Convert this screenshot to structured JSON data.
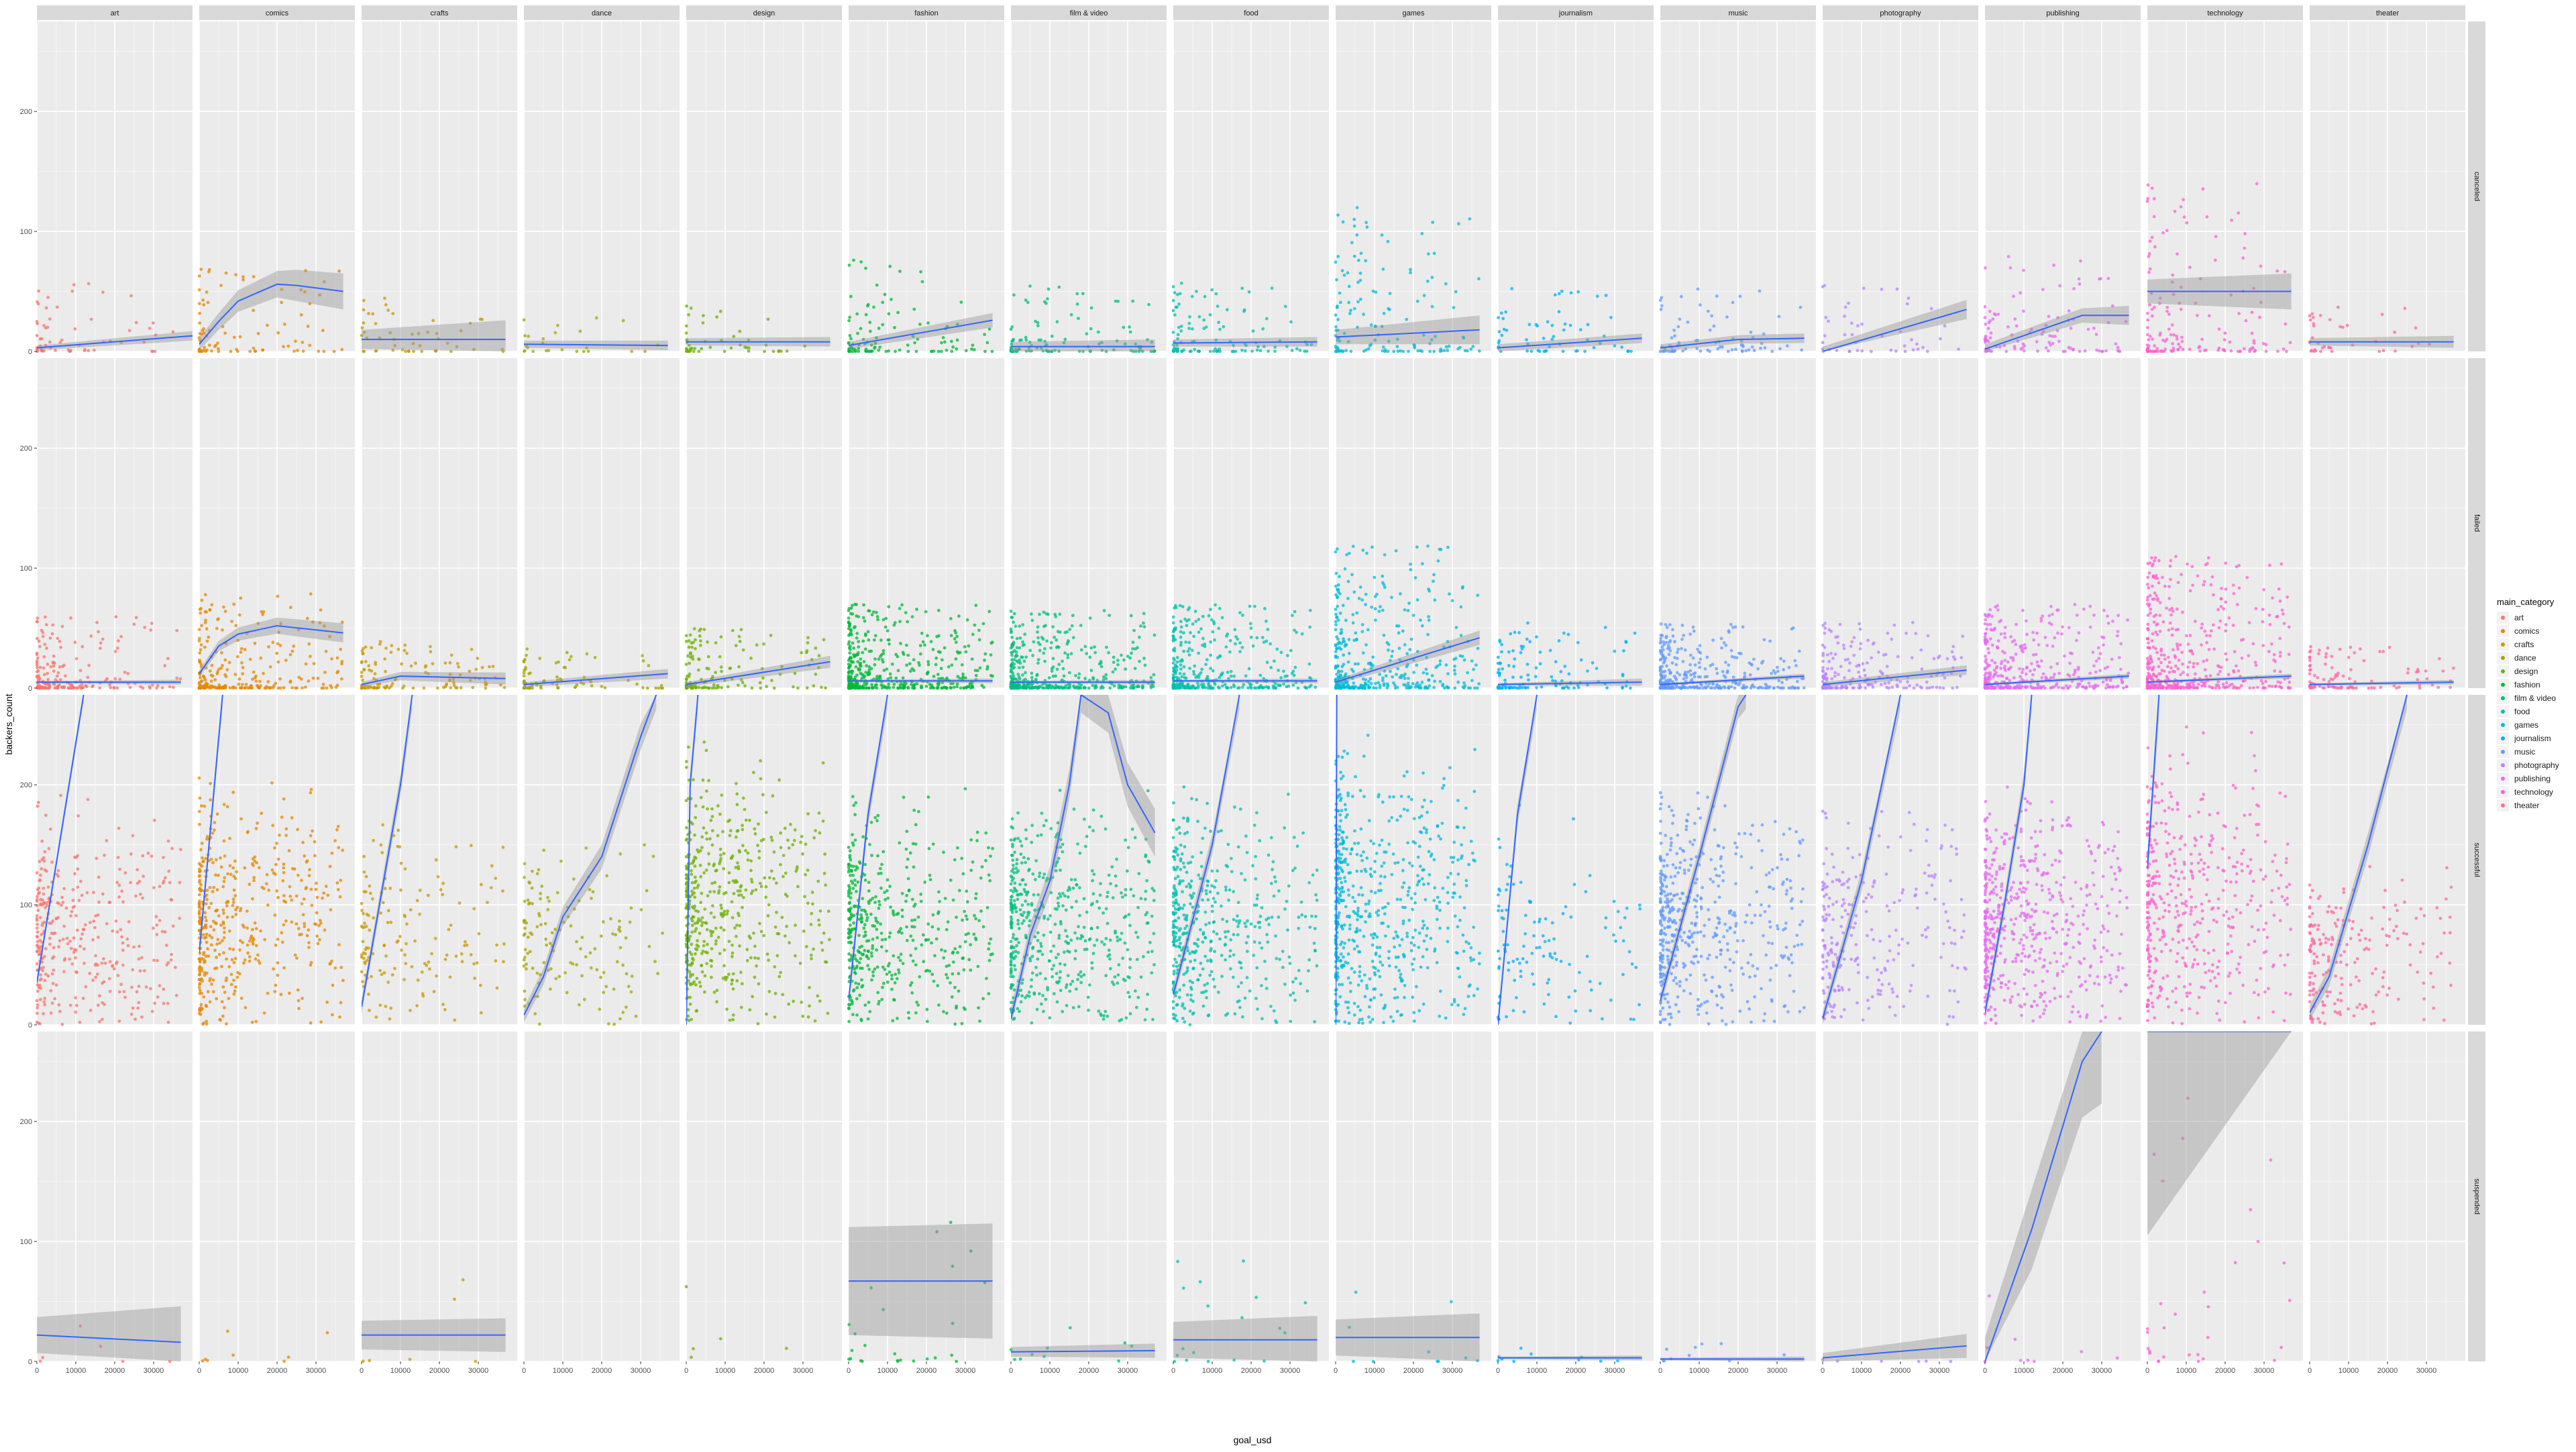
{
  "chart_data": {
    "type": "scatter",
    "subtype": "faceted-scatter-with-smooth",
    "xlabel": "goal_usd",
    "ylabel": "backers_count",
    "xlim": [
      0,
      40000
    ],
    "ylim": [
      0,
      275
    ],
    "x_ticks": [
      0,
      10000,
      20000,
      30000
    ],
    "y_ticks": [
      0,
      100,
      200
    ],
    "legend": {
      "title": "main_category",
      "position": "right",
      "items": [
        {
          "label": "art",
          "color": "#F8766D"
        },
        {
          "label": "comics",
          "color": "#E58700"
        },
        {
          "label": "crafts",
          "color": "#C99800"
        },
        {
          "label": "dance",
          "color": "#A3A500"
        },
        {
          "label": "design",
          "color": "#6BB100"
        },
        {
          "label": "fashion",
          "color": "#00BA38"
        },
        {
          "label": "film & video",
          "color": "#00BF7D"
        },
        {
          "label": "food",
          "color": "#00C0AF"
        },
        {
          "label": "games",
          "color": "#00BCD8"
        },
        {
          "label": "journalism",
          "color": "#00B0F6"
        },
        {
          "label": "music",
          "color": "#619CFF"
        },
        {
          "label": "photography",
          "color": "#B983FF"
        },
        {
          "label": "publishing",
          "color": "#E76BF3"
        },
        {
          "label": "technology",
          "color": "#FD61D1"
        },
        {
          "label": "theater",
          "color": "#FF67A4"
        }
      ]
    },
    "columns": [
      "art",
      "comics",
      "crafts",
      "dance",
      "design",
      "fashion",
      "film & video",
      "food",
      "games",
      "journalism",
      "music",
      "photography",
      "publishing",
      "technology",
      "theater"
    ],
    "rows": [
      "canceled",
      "failed",
      "successful",
      "suspended"
    ],
    "series": [
      {
        "row": "canceled",
        "density": [
          60,
          90,
          50,
          25,
          50,
          110,
          110,
          110,
          140,
          60,
          80,
          45,
          110,
          160,
          40
        ],
        "spread": [
          60,
          70,
          45,
          30,
          45,
          80,
          55,
          60,
          120,
          55,
          55,
          55,
          80,
          140,
          40
        ],
        "smooth": [
          [
            [
              0,
              3
            ],
            [
              40000,
              13
            ]
          ],
          [
            [
              0,
              6
            ],
            [
              5000,
              25
            ],
            [
              10000,
              42
            ],
            [
              20000,
              56
            ],
            [
              25000,
              55
            ],
            [
              37000,
              50
            ]
          ],
          [
            [
              0,
              10
            ],
            [
              37000,
              10
            ]
          ],
          [
            [
              0,
              6
            ],
            [
              37000,
              5
            ]
          ],
          [
            [
              0,
              8
            ],
            [
              37000,
              8
            ]
          ],
          [
            [
              0,
              5
            ],
            [
              37000,
              26
            ]
          ],
          [
            [
              0,
              4
            ],
            [
              37000,
              4
            ]
          ],
          [
            [
              0,
              7
            ],
            [
              37000,
              8
            ]
          ],
          [
            [
              0,
              12
            ],
            [
              37000,
              18
            ]
          ],
          [
            [
              0,
              3
            ],
            [
              37000,
              11
            ]
          ],
          [
            [
              0,
              3
            ],
            [
              20000,
              10
            ],
            [
              37000,
              11
            ]
          ],
          [
            [
              0,
              0
            ],
            [
              37000,
              35
            ]
          ],
          [
            [
              0,
              2
            ],
            [
              25000,
              30
            ],
            [
              37000,
              30
            ]
          ],
          [
            [
              0,
              50
            ],
            [
              37000,
              50
            ]
          ],
          [
            [
              0,
              8
            ],
            [
              37000,
              8
            ]
          ]
        ],
        "band": [
          [
            2,
            4
          ],
          [
            5,
            15
          ],
          [
            8,
            16
          ],
          [
            3,
            4
          ],
          [
            3,
            4
          ],
          [
            3,
            6
          ],
          [
            4,
            6
          ],
          [
            3,
            4
          ],
          [
            6,
            12
          ],
          [
            3,
            4
          ],
          [
            3,
            4
          ],
          [
            4,
            8
          ],
          [
            4,
            8
          ],
          [
            10,
            15
          ],
          [
            3,
            5
          ]
        ]
      },
      {
        "row": "failed",
        "density": [
          200,
          250,
          120,
          80,
          140,
          450,
          400,
          350,
          400,
          120,
          350,
          200,
          400,
          450,
          100
        ],
        "spread": [
          60,
          80,
          40,
          35,
          50,
          70,
          65,
          70,
          120,
          55,
          55,
          55,
          70,
          110,
          35
        ],
        "smooth": [
          [
            [
              0,
              5
            ],
            [
              37000,
              5
            ]
          ],
          [
            [
              0,
              12
            ],
            [
              5000,
              35
            ],
            [
              10000,
              45
            ],
            [
              20000,
              52
            ],
            [
              37000,
              46
            ]
          ],
          [
            [
              0,
              3
            ],
            [
              10000,
              10
            ],
            [
              37000,
              8
            ]
          ],
          [
            [
              0,
              3
            ],
            [
              37000,
              12
            ]
          ],
          [
            [
              0,
              3
            ],
            [
              37000,
              22
            ]
          ],
          [
            [
              0,
              6
            ],
            [
              37000,
              6
            ]
          ],
          [
            [
              0,
              5
            ],
            [
              37000,
              5
            ]
          ],
          [
            [
              0,
              6
            ],
            [
              37000,
              6
            ]
          ],
          [
            [
              0,
              5
            ],
            [
              37000,
              42
            ]
          ],
          [
            [
              0,
              3
            ],
            [
              37000,
              5
            ]
          ],
          [
            [
              0,
              3
            ],
            [
              37000,
              10
            ]
          ],
          [
            [
              0,
              3
            ],
            [
              37000,
              15
            ]
          ],
          [
            [
              0,
              3
            ],
            [
              37000,
              10
            ]
          ],
          [
            [
              0,
              5
            ],
            [
              37000,
              10
            ]
          ],
          [
            [
              0,
              3
            ],
            [
              37000,
              5
            ]
          ]
        ],
        "band": [
          [
            1,
            2
          ],
          [
            3,
            8
          ],
          [
            2,
            5
          ],
          [
            2,
            4
          ],
          [
            2,
            5
          ],
          [
            1,
            2
          ],
          [
            1,
            2
          ],
          [
            1,
            2
          ],
          [
            2,
            6
          ],
          [
            1,
            3
          ],
          [
            1,
            2
          ],
          [
            2,
            4
          ],
          [
            1,
            2
          ],
          [
            1,
            2
          ],
          [
            1,
            2
          ]
        ]
      },
      {
        "row": "successful",
        "density": [
          350,
          450,
          150,
          140,
          500,
          450,
          500,
          450,
          600,
          120,
          500,
          250,
          550,
          450,
          200
        ],
        "spread": [
          160,
          180,
          160,
          150,
          200,
          170,
          170,
          170,
          210,
          150,
          170,
          160,
          170,
          200,
          120
        ],
        "smooth": [
          [
            [
              0,
              35
            ],
            [
              12000,
              275
            ]
          ],
          [
            [
              0,
              60
            ],
            [
              6000,
              275
            ]
          ],
          [
            [
              0,
              15
            ],
            [
              10000,
              200
            ],
            [
              13000,
              275
            ]
          ],
          [
            [
              0,
              8
            ],
            [
              5000,
              40
            ],
            [
              10000,
              90
            ],
            [
              14000,
              110
            ],
            [
              20000,
              140
            ],
            [
              30000,
              240
            ],
            [
              34000,
              275
            ]
          ],
          [
            [
              0,
              0
            ],
            [
              1000,
              200
            ],
            [
              3000,
              275
            ]
          ],
          [
            [
              0,
              20
            ],
            [
              5000,
              175
            ],
            [
              10000,
              275
            ]
          ],
          [
            [
              0,
              5
            ],
            [
              5000,
              75
            ],
            [
              10000,
              120
            ],
            [
              15000,
              200
            ],
            [
              18000,
              275
            ],
            [
              25000,
              260
            ],
            [
              30000,
              200
            ],
            [
              37000,
              160
            ]
          ],
          [
            [
              0,
              25
            ],
            [
              10000,
              150
            ],
            [
              17000,
              275
            ]
          ],
          [
            [
              0,
              0
            ],
            [
              300,
              275
            ]
          ],
          [
            [
              0,
              0
            ],
            [
              5000,
              175
            ],
            [
              10000,
              275
            ]
          ],
          [
            [
              0,
              20
            ],
            [
              10000,
              140
            ],
            [
              20000,
              265
            ],
            [
              22000,
              275
            ]
          ],
          [
            [
              0,
              5
            ],
            [
              10000,
              120
            ],
            [
              20000,
              275
            ]
          ],
          [
            [
              0,
              10
            ],
            [
              5000,
              100
            ],
            [
              10000,
              200
            ],
            [
              12000,
              275
            ]
          ],
          [
            [
              0,
              130
            ],
            [
              3000,
              275
            ]
          ],
          [
            [
              0,
              10
            ],
            [
              5000,
              40
            ],
            [
              15000,
              150
            ],
            [
              25000,
              275
            ]
          ]
        ],
        "band": [
          [
            4,
            6
          ],
          [
            6,
            10
          ],
          [
            6,
            12
          ],
          [
            6,
            12
          ],
          [
            6,
            12
          ],
          [
            6,
            12
          ],
          [
            8,
            20
          ],
          [
            6,
            12
          ],
          [
            8,
            16
          ],
          [
            6,
            12
          ],
          [
            6,
            12
          ],
          [
            6,
            12
          ],
          [
            6,
            12
          ],
          [
            10,
            20
          ],
          [
            6,
            12
          ]
        ]
      },
      {
        "row": "suspended",
        "density": [
          6,
          8,
          6,
          0,
          5,
          25,
          10,
          18,
          10,
          10,
          10,
          6,
          10,
          30,
          0
        ],
        "spread": [
          90,
          40,
          100,
          0,
          80,
          120,
          35,
          120,
          60,
          20,
          20,
          25,
          60,
          220,
          0
        ],
        "smooth": [
          [
            [
              0,
              22
            ],
            [
              37000,
              16
            ]
          ],
          [],
          [
            [
              0,
              22
            ],
            [
              37000,
              22
            ]
          ],
          [],
          [],
          [
            [
              0,
              67
            ],
            [
              37000,
              67
            ]
          ],
          [
            [
              0,
              8
            ],
            [
              37000,
              9
            ]
          ],
          [
            [
              0,
              18
            ],
            [
              37000,
              18
            ]
          ],
          [
            [
              0,
              20
            ],
            [
              37000,
              20
            ]
          ],
          [
            [
              0,
              3
            ],
            [
              37000,
              3
            ]
          ],
          [
            [
              0,
              2
            ],
            [
              37000,
              2
            ]
          ],
          [
            [
              0,
              3
            ],
            [
              37000,
              13
            ]
          ],
          [
            [
              0,
              0
            ],
            [
              12000,
              110
            ],
            [
              25000,
              250
            ],
            [
              30000,
              275
            ]
          ],
          [
            [
              0,
              275
            ],
            [
              37000,
              275
            ]
          ],
          []
        ],
        "band": [
          [
            15,
            30
          ],
          [
            0,
            0
          ],
          [
            12,
            14
          ],
          [
            0,
            0
          ],
          [
            0,
            0
          ],
          [
            45,
            48
          ],
          [
            4,
            6
          ],
          [
            15,
            20
          ],
          [
            15,
            20
          ],
          [
            1,
            2
          ],
          [
            1,
            2
          ],
          [
            4,
            10
          ],
          [
            20,
            60
          ],
          [
            170,
            0
          ],
          [
            0,
            0
          ]
        ]
      }
    ]
  }
}
